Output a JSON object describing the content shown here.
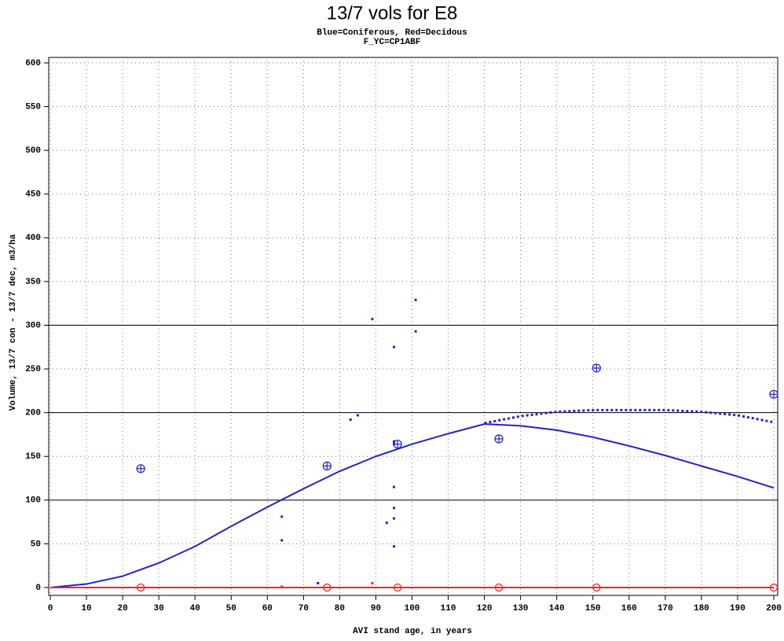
{
  "chart_data": {
    "type": "line",
    "title": "13/7 vols for E8",
    "subtitles": [
      "Blue=Coniferous, Red=Decidous",
      "F_YC=CP1ABF"
    ],
    "xlabel": "AVI stand age, in years",
    "ylabel": "Volume, 13/7 con - 13/7 dec, m3/ha",
    "xlim": [
      0,
      200
    ],
    "ylim": [
      0,
      600
    ],
    "xticks": [
      0,
      10,
      20,
      30,
      40,
      50,
      60,
      70,
      80,
      90,
      100,
      110,
      120,
      130,
      140,
      150,
      160,
      170,
      180,
      190,
      200
    ],
    "yticks": [
      0,
      50,
      100,
      150,
      200,
      250,
      300,
      350,
      400,
      450,
      500,
      550,
      600
    ],
    "grid": true,
    "reference_lines": [
      100,
      200,
      300
    ],
    "series": [
      {
        "type": "line",
        "style": "solid",
        "color": "#2222cc",
        "x": [
          0,
          10,
          20,
          30,
          40,
          50,
          60,
          70,
          80,
          90,
          100,
          110,
          120,
          130,
          140,
          150,
          160,
          170,
          180,
          190,
          200
        ],
        "values": [
          0,
          4,
          13,
          28,
          47,
          70,
          92,
          113,
          133,
          150,
          164,
          176,
          187,
          185,
          180,
          172,
          162,
          151,
          139,
          127,
          114
        ]
      },
      {
        "type": "line",
        "style": "dotted",
        "color": "#2222cc",
        "x": [
          120,
          130,
          140,
          150,
          160,
          170,
          180,
          190,
          200
        ],
        "values": [
          188,
          196,
          201,
          203,
          203,
          203,
          201,
          197,
          189
        ]
      },
      {
        "type": "line",
        "style": "solid",
        "color": "#ff2020",
        "x": [
          0,
          200
        ],
        "values": [
          0,
          0
        ]
      },
      {
        "type": "scatter",
        "marker": "circle-plus",
        "color": "#2222cc",
        "x": [
          25,
          76.5,
          96,
          124,
          151,
          200
        ],
        "values": [
          136,
          139,
          164,
          170,
          251,
          221
        ]
      },
      {
        "type": "scatter",
        "marker": "circle",
        "color": "#ff2020",
        "x": [
          25,
          76.5,
          96,
          124,
          151,
          200
        ],
        "values": [
          0,
          0,
          0,
          0,
          0,
          0
        ]
      },
      {
        "type": "scatter",
        "marker": "square",
        "color": "#2222cc",
        "x": [
          64,
          64,
          74,
          83,
          85,
          89,
          93,
          95,
          95,
          95,
          95,
          95,
          95,
          95,
          101,
          101
        ],
        "values": [
          81,
          54,
          5,
          192,
          197,
          307,
          74,
          275,
          167,
          164,
          115,
          91,
          79,
          47,
          329,
          293
        ]
      },
      {
        "type": "scatter",
        "marker": "square",
        "color": "#ff2020",
        "x": [
          64,
          89
        ],
        "values": [
          1,
          5
        ]
      }
    ]
  }
}
